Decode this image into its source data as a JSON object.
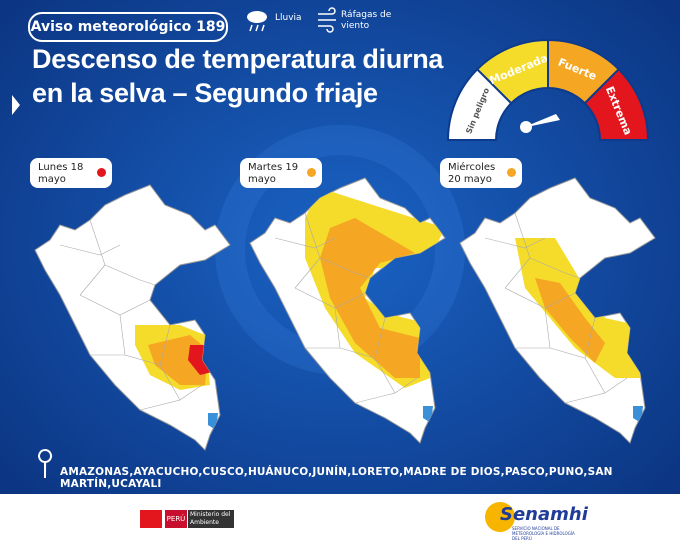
{
  "badge": {
    "title": "Aviso meteorológico",
    "number": "189"
  },
  "legend": [
    {
      "label": "Lluvia"
    },
    {
      "label": "Ráfagas de viento"
    }
  ],
  "headline": "Descenso de temperatura diurna en la selva – Segundo friaje",
  "gauge": {
    "levels": [
      {
        "label": "Sin peligro",
        "color": "#ffffff"
      },
      {
        "label": "Moderada",
        "color": "#f5dc2a"
      },
      {
        "label": "Fuerte",
        "color": "#f5a623"
      },
      {
        "label": "Extrema",
        "color": "#e3161e"
      }
    ]
  },
  "days": [
    {
      "label": "Lunes 18 mayo",
      "level_color": "#e3161e"
    },
    {
      "label": "Martes 19 mayo",
      "level_color": "#f5a623"
    },
    {
      "label": "Miércoles 20 mayo",
      "level_color": "#f5a623"
    }
  ],
  "regions": "AMAZONAS,AYACUCHO,CUSCO,HUÁNUCO,JUNÍN,LORETO,MADRE DE DIOS,PASCO,PUNO,SAN MARTÍN,UCAYALI",
  "footer": {
    "country": "PERÚ",
    "ministry": "Ministerio del Ambiente",
    "brand": "Senamhi",
    "brand_sub": "SERVICIO NACIONAL DE METEOROLOGÍA E HIDROLOGÍA DEL PERÚ"
  }
}
